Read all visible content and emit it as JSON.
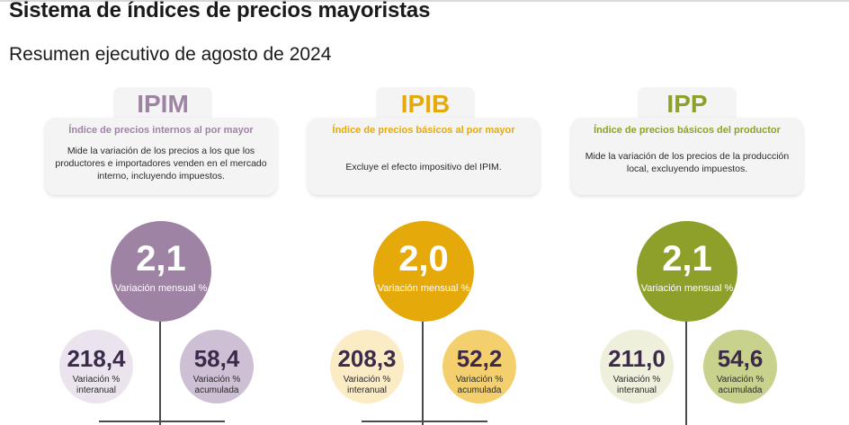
{
  "header": {
    "title": "Sistema de índices de precios mayoristas",
    "subtitle": "Resumen ejecutivo de agosto de 2024"
  },
  "indices": [
    {
      "code": "IPIM",
      "name": "Índice de precios internos al por mayor",
      "description": "Mide la variación de los precios a los que los productores e importadores venden en el mercado interno, incluyendo impuestos.",
      "monthly": {
        "value": "2,1",
        "label": "Variación mensual %"
      },
      "interannual": {
        "value": "218,4",
        "label": "Variación % interanual"
      },
      "accumulated": {
        "value": "58,4",
        "label": "Variación % acumulada"
      },
      "colors": {
        "main": "#9e83a5",
        "light": "#ebe4ee",
        "mid": "#cdbfd4",
        "text": "#9e83a5"
      }
    },
    {
      "code": "IPIB",
      "name": "Índice de precios básicos al por mayor",
      "description": "Excluye el efecto impositivo del IPIM.",
      "monthly": {
        "value": "2,0",
        "label": "Variación mensual %"
      },
      "interannual": {
        "value": "208,3",
        "label": "Variación % interanual"
      },
      "accumulated": {
        "value": "52,2",
        "label": "Variación % acumulada"
      },
      "colors": {
        "main": "#e6a90a",
        "light": "#fbecc6",
        "mid": "#f3cf6d",
        "text": "#e6a90a"
      }
    },
    {
      "code": "IPP",
      "name": "Índice de precios básicos del productor",
      "description": "Mide la variación de los precios de la producción local, excluyendo impuestos.",
      "monthly": {
        "value": "2,1",
        "label": "Variación mensual %"
      },
      "interannual": {
        "value": "211,0",
        "label": "Variación % interanual"
      },
      "accumulated": {
        "value": "54,6",
        "label": "Variación % acumulada"
      },
      "colors": {
        "main": "#8ea02a",
        "light": "#eef0dc",
        "mid": "#c8d28d",
        "text": "#8ea02a"
      }
    }
  ]
}
